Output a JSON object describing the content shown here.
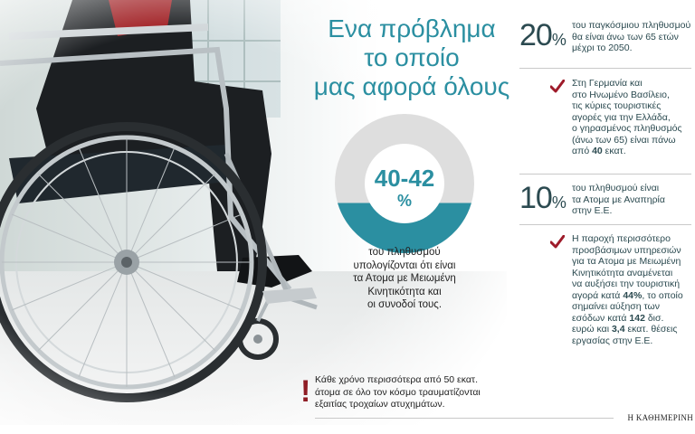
{
  "headline": {
    "line1": "Ενα πρόβλημα",
    "line2": "το οποίο",
    "line3": "μας αφορά όλους"
  },
  "donut": {
    "value": "40-42",
    "unit": "%",
    "fill_fraction": 0.41,
    "caption_line1": "του πληθυσμού",
    "caption_line2": "υπολογίζονται ότι είναι",
    "caption_line3": "τα Ατομα με Μειωμένη",
    "caption_line4": "Κινητικότητα και",
    "caption_line5": "οι συνοδοί τους."
  },
  "note": {
    "mark": "!",
    "line1": "Κάθε χρόνο περισσότερα από 50 εκατ.",
    "line2": "άτομα σε όλο τον κόσμο τραυματίζονται",
    "line3": "εξαιτίας τροχαίων ατυχημάτων."
  },
  "stats": [
    {
      "number": "20",
      "unit": "%",
      "line1": "του παγκόσμιου πληθυσμού",
      "line2": "θα είναι άνω των 65 ετών",
      "line3": "μέχρι το 2050."
    },
    {
      "number": "10",
      "unit": "%",
      "line1": "του πληθυσμού είναι",
      "line2": "τα Ατομα με Αναπηρία",
      "line3": "στην Ε.Ε."
    }
  ],
  "bullets": [
    {
      "line1": "Στη Γερμανία και",
      "line2": "στο Ηνωμένο Βασίλειο,",
      "line3": "τις κύριες τουριστικές",
      "line4": "αγορές για την Ελλάδα,",
      "line5": "ο γηρασμένος πληθυσμός",
      "line6": "(άνω των 65) είναι πάνω",
      "line7_pre": "από ",
      "line7_bold": "40",
      "line7_post": " εκατ."
    },
    {
      "line1": "Η παροχή περισσότερο",
      "line2": "προσβάσιμων υπηρεσιών",
      "line3": "για τα Ατομα με Μειωμένη",
      "line4": "Κινητικότητα αναμένεται",
      "line5": "να αυξήσει την τουριστική",
      "line6_pre": "αγορά κατά ",
      "line6_bold": "44%",
      "line6_post": ", το οποίο",
      "line7": "σημαίνει αύξηση των",
      "line8_pre": "εσόδων κατά ",
      "line8_bold": "142",
      "line8_post": " δισ.",
      "line9_pre": "ευρώ και ",
      "line9_bold": "3,4",
      "line9_post": " εκατ. θέσεις",
      "line10": "εργασίας στην Ε.Ε."
    }
  ],
  "brand": "Η ΚΑΘΗΜΕΡΙΝΗ",
  "colors": {
    "accent": "#2b8fa1",
    "donut_light": "#dedede",
    "check": "#9e1b2a",
    "note_mark": "#8f1d25",
    "text": "#2b4a50"
  },
  "icons": {
    "check": "check-mark-icon",
    "note": "exclamation-icon"
  }
}
